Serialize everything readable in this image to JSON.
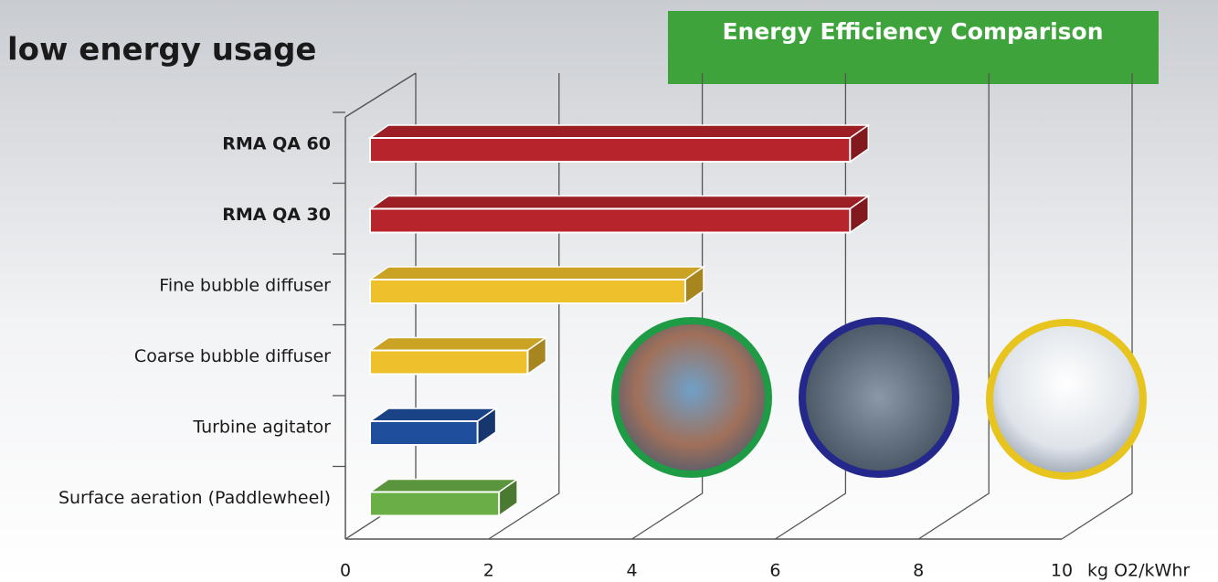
{
  "chart_data": {
    "type": "bar3d",
    "heading": "low energy usage",
    "title": "Energy Efficiency Comparison",
    "categories": [
      "RMA QA 60",
      "RMA QA 30",
      "Fine bubble diffuser",
      "Coarse bubble diffuser",
      "Turbine agitator",
      "Surface aeration (Paddlewheel)"
    ],
    "values": [
      6.7,
      6.7,
      4.4,
      2.2,
      1.5,
      1.8
    ],
    "colors": [
      "#b8242c",
      "#b8242c",
      "#eec02c",
      "#eec02c",
      "#1f4f9c",
      "#6aae46"
    ],
    "xlim": [
      0,
      10
    ],
    "xticks": [
      0,
      2,
      4,
      6,
      8,
      10
    ],
    "x_unit": "kg O2/kWhr",
    "grid": true
  }
}
